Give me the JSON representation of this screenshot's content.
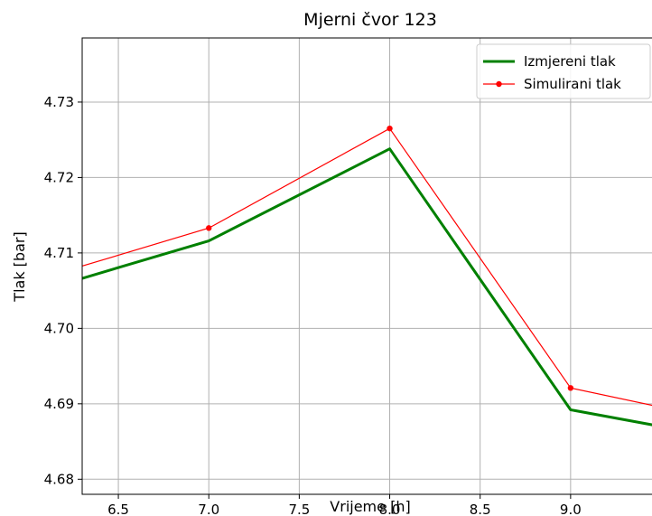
{
  "chart_data": {
    "type": "line",
    "title": "Mjerni čvor 123",
    "xlabel": "Vrijeme [h]",
    "ylabel": "Tlak [bar]",
    "xlim": [
      6.3,
      9.45
    ],
    "ylim": [
      4.678,
      4.7385
    ],
    "xticks": [
      6.5,
      7.0,
      7.5,
      8.0,
      8.5,
      9.0
    ],
    "xtick_labels": [
      "6.5",
      "7.0",
      "7.5",
      "8.0",
      "8.5",
      "9.0"
    ],
    "yticks": [
      4.68,
      4.69,
      4.7,
      4.71,
      4.72,
      4.73
    ],
    "ytick_labels": [
      "4.68",
      "4.69",
      "4.70",
      "4.71",
      "4.72",
      "4.73"
    ],
    "grid": true,
    "legend_position": "top-right",
    "series": [
      {
        "name": "Izmjereni tlak",
        "color": "#008000",
        "marker": "none",
        "x": [
          6.0,
          7.0,
          8.0,
          9.0,
          10.0
        ],
        "y": [
          4.7045,
          4.7116,
          4.7238,
          4.6892,
          4.6848
        ]
      },
      {
        "name": "Simulirani tlak",
        "color": "#ff0000",
        "marker": "circle",
        "x": [
          6.0,
          7.0,
          8.0,
          9.0,
          10.0
        ],
        "y": [
          4.7061,
          4.7133,
          4.7265,
          4.6921,
          4.687
        ]
      }
    ]
  }
}
